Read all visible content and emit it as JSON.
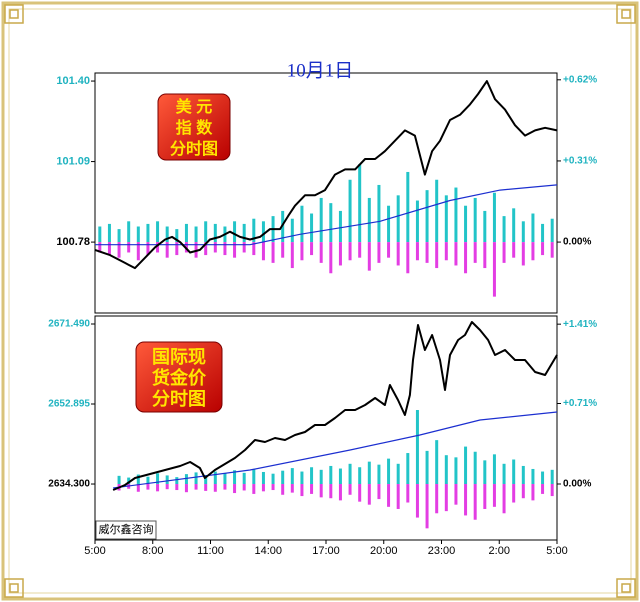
{
  "chart_data": [
    {
      "type": "line",
      "title": "10月1日",
      "badge": [
        "美  元",
        "指  数",
        "分时图"
      ],
      "xlim": [
        0,
        24
      ],
      "ylim": [
        100.507,
        101.431
      ],
      "y2lim": [
        -0.271,
        0.646
      ],
      "yticks": [
        100.78,
        101.09,
        {
          "value": 101.4,
          "label": "101.40"
        }
      ],
      "y2ticks": [
        {
          "value": 0,
          "label": "0.00%"
        },
        {
          "value": 0.31,
          "label": "+0.31%"
        },
        {
          "value": 0.62,
          "label": "+0.62%"
        }
      ],
      "series": [
        {
          "type": "bar",
          "color": "#22c4c8",
          "x": [
            0.25,
            0.75,
            1.25,
            1.75,
            2.25,
            2.75,
            3.25,
            3.75,
            4.25,
            4.75,
            5.25,
            5.75,
            6.25,
            6.75,
            7.25,
            7.75,
            8.25,
            8.75,
            9.25,
            9.75,
            10.25,
            10.75,
            11.25,
            11.75,
            12.25,
            12.75,
            13.25,
            13.75,
            14.25,
            14.75,
            15.25,
            15.75,
            16.25,
            16.75,
            17.25,
            17.75,
            18.25,
            18.75,
            19.25,
            19.75,
            20.25,
            20.75,
            21.25,
            21.75,
            22.25,
            22.75,
            23.25,
            23.75
          ],
          "values": [
            100.84,
            100.85,
            100.83,
            100.86,
            100.84,
            100.85,
            100.86,
            100.84,
            100.83,
            100.85,
            100.84,
            100.86,
            100.85,
            100.84,
            100.86,
            100.85,
            100.87,
            100.86,
            100.88,
            100.9,
            100.87,
            100.92,
            100.89,
            100.95,
            100.93,
            100.9,
            101.02,
            101.08,
            100.95,
            101.0,
            100.92,
            100.96,
            101.05,
            100.94,
            100.98,
            101.02,
            100.96,
            100.99,
            100.92,
            100.95,
            100.9,
            100.97,
            100.88,
            100.91,
            100.86,
            100.89,
            100.85,
            100.87
          ]
        },
        {
          "type": "bar",
          "color": "#e33de3",
          "x": [
            0.25,
            0.75,
            1.25,
            1.75,
            2.25,
            2.75,
            3.25,
            3.75,
            4.25,
            4.75,
            5.25,
            5.75,
            6.25,
            6.75,
            7.25,
            7.75,
            8.25,
            8.75,
            9.25,
            9.75,
            10.25,
            10.75,
            11.25,
            11.75,
            12.25,
            12.75,
            13.25,
            13.75,
            14.25,
            14.75,
            15.25,
            15.75,
            16.25,
            16.75,
            17.25,
            17.75,
            18.25,
            18.75,
            19.25,
            19.75,
            20.25,
            20.75,
            21.25,
            21.75,
            22.25,
            22.75,
            23.25,
            23.75
          ],
          "values": [
            100.74,
            100.73,
            100.72,
            100.74,
            100.71,
            100.73,
            100.74,
            100.72,
            100.73,
            100.74,
            100.72,
            100.73,
            100.74,
            100.73,
            100.72,
            100.74,
            100.73,
            100.71,
            100.7,
            100.72,
            100.68,
            100.71,
            100.73,
            100.7,
            100.66,
            100.69,
            100.71,
            100.72,
            100.67,
            100.7,
            100.72,
            100.69,
            100.66,
            100.71,
            100.7,
            100.68,
            100.71,
            100.69,
            100.66,
            100.7,
            100.68,
            100.57,
            100.7,
            100.72,
            100.69,
            100.71,
            100.73,
            100.72
          ]
        },
        {
          "type": "line",
          "color": "#1c2fd0",
          "x": [
            0,
            8.05,
            10.65,
            14.81,
            18.44,
            21.04,
            24
          ],
          "values": [
            100.77,
            100.77,
            100.81,
            100.86,
            100.94,
            100.98,
            101.0
          ]
        },
        {
          "type": "line",
          "color": "#000000",
          "x": [
            0,
            0.78,
            1.56,
            2.08,
            2.6,
            3.12,
            3.64,
            4.0,
            4.42,
            4.94,
            5.45,
            5.97,
            6.49,
            7.01,
            7.53,
            8.05,
            8.57,
            9.09,
            9.61,
            10.03,
            10.39,
            10.91,
            11.43,
            11.95,
            12.47,
            12.99,
            13.51,
            14.03,
            14.55,
            15.06,
            15.58,
            16.1,
            16.62,
            17.14,
            17.51,
            17.92,
            18.44,
            18.96,
            19.48,
            19.9,
            20.36,
            20.78,
            21.3,
            21.82,
            22.34,
            22.86,
            23.38,
            24.0
          ],
          "values": [
            100.75,
            100.73,
            100.7,
            100.68,
            100.72,
            100.76,
            100.79,
            100.8,
            100.78,
            100.74,
            100.75,
            100.79,
            100.8,
            100.82,
            100.8,
            100.79,
            100.8,
            100.83,
            100.83,
            100.88,
            100.92,
            100.96,
            100.96,
            100.98,
            101.04,
            101.06,
            101.06,
            101.1,
            101.1,
            101.13,
            101.17,
            101.21,
            101.19,
            101.04,
            101.13,
            101.17,
            101.25,
            101.27,
            101.31,
            101.35,
            101.4,
            101.33,
            101.29,
            101.23,
            101.19,
            101.21,
            101.22,
            101.21
          ]
        }
      ]
    },
    {
      "type": "line",
      "badge": [
        "国际现",
        "货金价",
        "分时图"
      ],
      "source": "威尔鑫咨询",
      "xlim": [
        0,
        24
      ],
      "ylim": [
        2621.29,
        2673.35
      ],
      "y2lim": [
        -0.494,
        1.482
      ],
      "xticks": [
        {
          "value": 0,
          "label": "5:00"
        },
        {
          "value": 3,
          "label": "8:00"
        },
        {
          "value": 6,
          "label": "11:00"
        },
        {
          "value": 9,
          "label": "14:00"
        },
        {
          "value": 12,
          "label": "17:00"
        },
        {
          "value": 15,
          "label": "20:00"
        },
        {
          "value": 18,
          "label": "23:00"
        },
        {
          "value": 21,
          "label": "2:00"
        },
        {
          "value": 24,
          "label": "5:00"
        }
      ],
      "yticks": [
        {
          "value": 2634.3,
          "label": "2634.300"
        },
        2652.895,
        {
          "value": 2671.49,
          "label": "2671.490"
        }
      ],
      "y2ticks": [
        {
          "value": 0,
          "label": "0.00%"
        },
        {
          "value": 0.71,
          "label": "+0.71%"
        },
        {
          "value": 1.41,
          "label": "+1.41%"
        }
      ],
      "series": [
        {
          "type": "bar",
          "color": "#22c4c8",
          "x": [
            0.25,
            0.75,
            1.25,
            1.75,
            2.25,
            2.75,
            3.25,
            3.75,
            4.25,
            4.75,
            5.25,
            5.75,
            6.25,
            6.75,
            7.25,
            7.75,
            8.25,
            8.75,
            9.25,
            9.75,
            10.25,
            10.75,
            11.25,
            11.75,
            12.25,
            12.75,
            13.25,
            13.75,
            14.25,
            14.75,
            15.25,
            15.75,
            16.25,
            16.75,
            17.25,
            17.75,
            18.25,
            18.75,
            19.25,
            19.75,
            20.25,
            20.75,
            21.25,
            21.75,
            22.25,
            22.75,
            23.25,
            23.75
          ],
          "values": [
            null,
            null,
            2636.2,
            2635.8,
            2636.5,
            2636.0,
            2636.8,
            2636.3,
            2635.9,
            2636.6,
            2637.0,
            2636.4,
            2637.2,
            2636.8,
            2637.5,
            2636.9,
            2637.8,
            2637.1,
            2636.7,
            2637.4,
            2638.0,
            2637.2,
            2638.2,
            2637.6,
            2638.5,
            2637.9,
            2639.0,
            2638.2,
            2639.5,
            2638.8,
            2640.2,
            2639.0,
            2641.5,
            2651.5,
            2642.0,
            2644.5,
            2641.0,
            2640.5,
            2643.0,
            2641.8,
            2639.8,
            2641.2,
            2639.0,
            2640.0,
            2638.5,
            2637.8,
            2637.2,
            2637.6
          ]
        },
        {
          "type": "bar",
          "color": "#e33de3",
          "x": [
            0.25,
            0.75,
            1.25,
            1.75,
            2.25,
            2.75,
            3.25,
            3.75,
            4.25,
            4.75,
            5.25,
            5.75,
            6.25,
            6.75,
            7.25,
            7.75,
            8.25,
            8.75,
            9.25,
            9.75,
            10.25,
            10.75,
            11.25,
            11.75,
            12.25,
            12.75,
            13.25,
            13.75,
            14.25,
            14.75,
            15.25,
            15.75,
            16.25,
            16.75,
            17.25,
            17.75,
            18.25,
            18.75,
            19.25,
            19.75,
            20.25,
            20.75,
            21.25,
            21.75,
            22.25,
            22.75,
            23.25,
            23.75
          ],
          "values": [
            null,
            null,
            2632.8,
            2633.2,
            2632.5,
            2633.0,
            2632.6,
            2633.1,
            2632.9,
            2632.4,
            2633.0,
            2632.7,
            2632.5,
            2633.0,
            2632.2,
            2632.8,
            2632.0,
            2632.6,
            2632.9,
            2631.8,
            2632.3,
            2631.5,
            2632.0,
            2631.2,
            2631.0,
            2630.5,
            2631.8,
            2630.2,
            2629.5,
            2630.8,
            2629.0,
            2628.5,
            2630.0,
            2626.5,
            2624.0,
            2627.5,
            2628.0,
            2629.5,
            2627.0,
            2626.0,
            2628.5,
            2629.0,
            2627.5,
            2630.0,
            2631.0,
            2630.5,
            2632.0,
            2631.5
          ]
        },
        {
          "type": "line",
          "color": "#1c2fd0",
          "x": [
            0.94,
            8.05,
            13.25,
            16.88,
            20.0,
            24
          ],
          "values": [
            2633.38,
            2637.56,
            2642.21,
            2645.69,
            2649.18,
            2651.04
          ]
        },
        {
          "type": "line",
          "color": "#000000",
          "x": [
            0.94,
            1.56,
            2.08,
            2.86,
            3.64,
            4.42,
            4.94,
            5.45,
            5.71,
            6.23,
            6.75,
            7.27,
            7.79,
            8.31,
            8.83,
            9.35,
            9.87,
            10.39,
            10.91,
            11.43,
            11.95,
            12.47,
            12.99,
            13.51,
            14.03,
            14.55,
            15.06,
            15.32,
            15.74,
            16.1,
            16.36,
            16.52,
            16.78,
            17.14,
            17.51,
            17.92,
            18.18,
            18.44,
            18.86,
            19.22,
            19.58,
            20.0,
            20.42,
            20.78,
            21.3,
            21.82,
            22.34,
            22.86,
            23.38,
            24.0
          ],
          "values": [
            2632.91,
            2634.07,
            2635.7,
            2636.63,
            2637.56,
            2638.49,
            2639.42,
            2638.02,
            2635.7,
            2637.56,
            2638.95,
            2640.35,
            2642.21,
            2644.53,
            2644.07,
            2645.0,
            2644.53,
            2645.69,
            2646.39,
            2648.02,
            2648.02,
            2649.64,
            2651.5,
            2651.5,
            2652.67,
            2654.29,
            2652.67,
            2657.31,
            2653.83,
            2650.34,
            2654.99,
            2663.12,
            2671.26,
            2665.45,
            2668.93,
            2663.12,
            2656.15,
            2664.29,
            2667.77,
            2668.93,
            2671.95,
            2670.1,
            2667.77,
            2664.29,
            2665.45,
            2663.12,
            2663.12,
            2660.33,
            2659.64,
            2664.29
          ]
        }
      ]
    }
  ]
}
